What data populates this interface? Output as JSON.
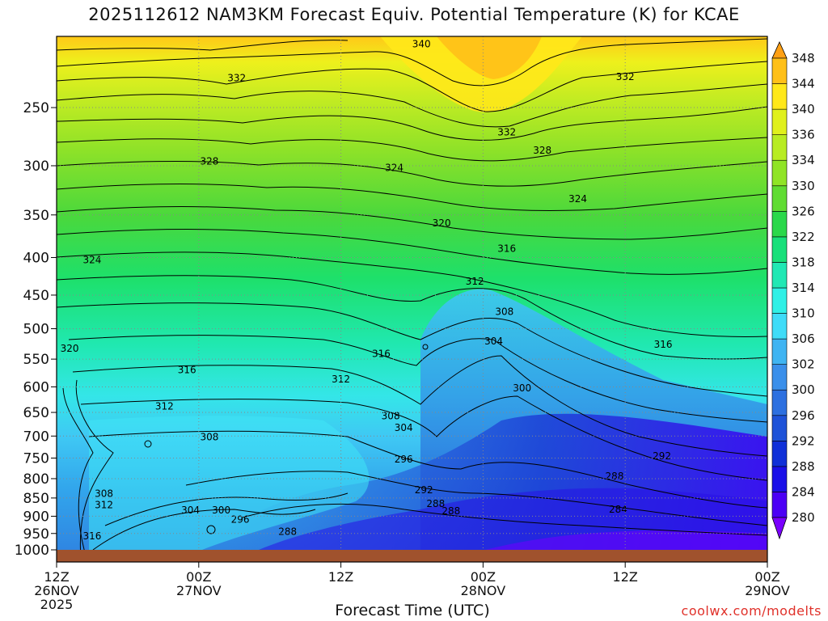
{
  "title": "2025112612 NAM3KM Forecast Equiv. Potential Temperature (K) for KCAE",
  "xlabel": "Forecast Time (UTC)",
  "credit": "coolwx.com/modelts",
  "colors": {
    "terrain": "#a0522d",
    "grid": "#888888",
    "contour": "#000000",
    "credit": "#e0312a"
  },
  "chart_data": {
    "type": "heatmap",
    "title": "2025112612 NAM3KM Forecast Equiv. Potential Temperature (K) for KCAE",
    "xlabel": "Forecast Time (UTC)",
    "ylabel": "",
    "y_axis": {
      "scale": "log-pressure",
      "ticks": [
        250,
        300,
        350,
        400,
        450,
        500,
        550,
        600,
        650,
        700,
        750,
        800,
        850,
        900,
        950,
        1000
      ],
      "ylim": [
        1000,
        200
      ],
      "unit": "hPa"
    },
    "x_axis": {
      "ticks": [
        {
          "hour": 0,
          "line1": "12Z",
          "line2": "26NOV",
          "line3": "2025"
        },
        {
          "hour": 12,
          "line1": "00Z",
          "line2": "27NOV",
          "line3": ""
        },
        {
          "hour": 24,
          "line1": "12Z",
          "line2": "",
          "line3": ""
        },
        {
          "hour": 36,
          "line1": "00Z",
          "line2": "28NOV",
          "line3": ""
        },
        {
          "hour": 48,
          "line1": "12Z",
          "line2": "",
          "line3": ""
        },
        {
          "hour": 60,
          "line1": "00Z",
          "line2": "29NOV",
          "line3": ""
        }
      ],
      "xlim": [
        0,
        60
      ],
      "unit": "forecast hour"
    },
    "grid": true,
    "colorbar": {
      "location": "right",
      "unit": "K",
      "levels": [
        280,
        284,
        288,
        292,
        296,
        300,
        302,
        306,
        310,
        314,
        318,
        322,
        326,
        330,
        334,
        336,
        340,
        344,
        348
      ],
      "colors": [
        "#7a00ff",
        "#4b00f5",
        "#1a10e8",
        "#1030d8",
        "#1e52d8",
        "#2d70e0",
        "#3a8fea",
        "#3fb4f2",
        "#3fdcf8",
        "#2ff0e6",
        "#20e8b4",
        "#18e07a",
        "#2ad84a",
        "#60dc32",
        "#90e426",
        "#b8ec22",
        "#e0f01c",
        "#ffe81a",
        "#ffc018",
        "#ffa014"
      ]
    },
    "contour_labels": [
      {
        "value": "340",
        "hour": 30.8,
        "p": 205
      },
      {
        "value": "332",
        "hour": 15.2,
        "p": 228
      },
      {
        "value": "332",
        "hour": 48.0,
        "p": 227
      },
      {
        "value": "332",
        "hour": 38.0,
        "p": 270
      },
      {
        "value": "328",
        "hour": 12.9,
        "p": 296
      },
      {
        "value": "328",
        "hour": 41.0,
        "p": 286
      },
      {
        "value": "324",
        "hour": 28.5,
        "p": 302
      },
      {
        "value": "324",
        "hour": 44.0,
        "p": 333
      },
      {
        "value": "324",
        "hour": 3.0,
        "p": 403
      },
      {
        "value": "320",
        "hour": 32.5,
        "p": 359
      },
      {
        "value": "320",
        "hour": 1.1,
        "p": 532
      },
      {
        "value": "316",
        "hour": 38.0,
        "p": 389
      },
      {
        "value": "316",
        "hour": 27.4,
        "p": 541
      },
      {
        "value": "316",
        "hour": 11.0,
        "p": 569
      },
      {
        "value": "316",
        "hour": 51.2,
        "p": 525
      },
      {
        "value": "316",
        "hour": 3.0,
        "p": 958
      },
      {
        "value": "312",
        "hour": 35.3,
        "p": 431
      },
      {
        "value": "312",
        "hour": 24.0,
        "p": 586
      },
      {
        "value": "312",
        "hour": 9.1,
        "p": 638
      },
      {
        "value": "312",
        "hour": 4.0,
        "p": 869
      },
      {
        "value": "308",
        "hour": 37.8,
        "p": 474
      },
      {
        "value": "308",
        "hour": 28.2,
        "p": 657
      },
      {
        "value": "308",
        "hour": 12.9,
        "p": 702
      },
      {
        "value": "308",
        "hour": 4.0,
        "p": 839
      },
      {
        "value": "304",
        "hour": 36.9,
        "p": 520
      },
      {
        "value": "304",
        "hour": 29.3,
        "p": 682
      },
      {
        "value": "304",
        "hour": 11.3,
        "p": 883
      },
      {
        "value": "300",
        "hour": 39.3,
        "p": 602
      },
      {
        "value": "300",
        "hour": 13.9,
        "p": 883
      },
      {
        "value": "296",
        "hour": 29.3,
        "p": 753
      },
      {
        "value": "296",
        "hour": 15.5,
        "p": 909
      },
      {
        "value": "292",
        "hour": 51.1,
        "p": 745
      },
      {
        "value": "292",
        "hour": 31.0,
        "p": 829
      },
      {
        "value": "288",
        "hour": 47.1,
        "p": 794
      },
      {
        "value": "288",
        "hour": 32.0,
        "p": 866
      },
      {
        "value": "288",
        "hour": 33.3,
        "p": 886
      },
      {
        "value": "288",
        "hour": 19.5,
        "p": 944
      },
      {
        "value": "284",
        "hour": 47.4,
        "p": 881
      }
    ]
  }
}
